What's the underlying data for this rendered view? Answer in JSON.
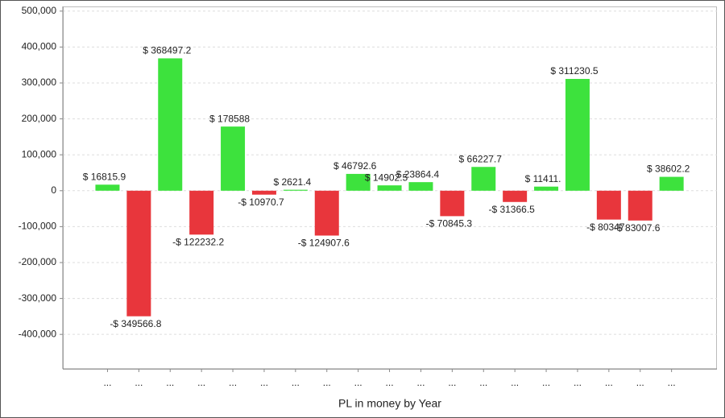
{
  "chart_data": {
    "type": "bar",
    "x_label": "PL in money by Year",
    "categories": [
      "...",
      "...",
      "...",
      "...",
      "...",
      "...",
      "...",
      "...",
      "...",
      "...",
      "...",
      "...",
      "...",
      "...",
      "...",
      "...",
      "...",
      "...",
      "..."
    ],
    "values": [
      16815.9,
      -349566.8,
      368497.2,
      -122232.2,
      178588,
      -10970.7,
      2621.4,
      -124907.6,
      46792.6,
      14902.5,
      23864.4,
      -70845.3,
      66227.7,
      -31366.5,
      11411,
      311230.5,
      -80347,
      -83007.6,
      38602.2
    ],
    "value_labels": [
      "$ 16815.9",
      "-$ 349566.8",
      "$ 368497.2",
      "-$ 122232.2",
      "$ 178588",
      "-$ 10970.7",
      "$ 2621.4",
      "-$ 124907.6",
      "$ 46792.6",
      "$ 14902.5",
      "$ 23864.4",
      "-$ 70845.3",
      "$ 66227.7",
      "-$ 31366.5",
      "$ 11411.",
      "$ 311230.5",
      "-$ 80347",
      "-$ 83007.6",
      "$ 38602.2"
    ],
    "positive_color": "#3de23d",
    "negative_color": "#e8363c",
    "ylim": [
      -496000,
      513000
    ],
    "yticks": [
      {
        "value": -400000,
        "label": "-400,000"
      },
      {
        "value": -300000,
        "label": "-300,000"
      },
      {
        "value": -200000,
        "label": "-200,000"
      },
      {
        "value": -100000,
        "label": "-100,000"
      },
      0,
      {
        "value": 100000,
        "label": "100,000"
      },
      {
        "value": 200000,
        "label": "200,000"
      },
      {
        "value": 300000,
        "label": "300,000"
      },
      {
        "value": 400000,
        "label": "400,000"
      },
      {
        "value": 500000,
        "label": "500,000"
      }
    ],
    "grid": true
  }
}
